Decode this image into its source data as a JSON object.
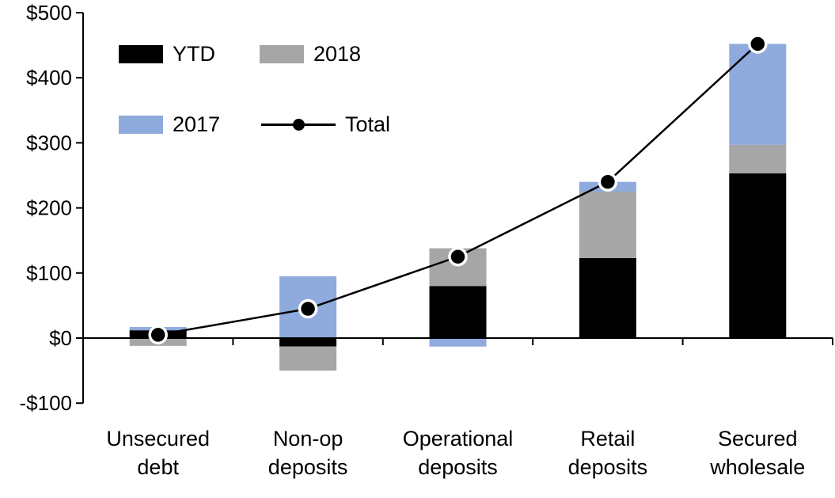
{
  "chart": {
    "background": "#ffffff",
    "axis_color": "#000000",
    "text_color": "#000000"
  },
  "legend": {
    "items": [
      {
        "label": "YTD",
        "type": "swatch",
        "color": "#000000"
      },
      {
        "label": "2018",
        "type": "swatch",
        "color": "#a6a6a6"
      },
      {
        "label": "2017",
        "type": "swatch",
        "color": "#8faadc"
      },
      {
        "label": "Total",
        "type": "line-marker",
        "color": "#000000"
      }
    ]
  },
  "chart_data": {
    "type": "bar",
    "stacked": true,
    "grid": false,
    "legend_position": "top-left-inside",
    "title": "",
    "xlabel": "",
    "ylabel": "",
    "categories": [
      "Unsecured debt",
      "Non-op deposits",
      "Operational deposits",
      "Retail deposits",
      "Secured wholesale"
    ],
    "category_labels_two_line": [
      [
        "Unsecured",
        "debt"
      ],
      [
        "Non-op",
        "deposits"
      ],
      [
        "Operational",
        "deposits"
      ],
      [
        "Retail",
        "deposits"
      ],
      [
        "Secured",
        "wholesale"
      ]
    ],
    "series": [
      {
        "name": "YTD",
        "color": "#000000",
        "values": [
          12,
          -13,
          80,
          123,
          253
        ]
      },
      {
        "name": "2018",
        "color": "#a6a6a6",
        "values": [
          -12,
          -37,
          58,
          102,
          44
        ]
      },
      {
        "name": "2017",
        "color": "#8faadc",
        "values": [
          5,
          95,
          -13,
          15,
          155
        ]
      }
    ],
    "line_series": {
      "name": "Total",
      "color": "#000000",
      "values": [
        5,
        45,
        125,
        240,
        452
      ]
    },
    "ylim": [
      -100,
      500
    ],
    "y_ticks": [
      500,
      400,
      300,
      200,
      100,
      0,
      -100
    ],
    "y_tick_labels": [
      "$500",
      "$400",
      "$300",
      "$200",
      "$100",
      "$0",
      "-$100"
    ]
  }
}
